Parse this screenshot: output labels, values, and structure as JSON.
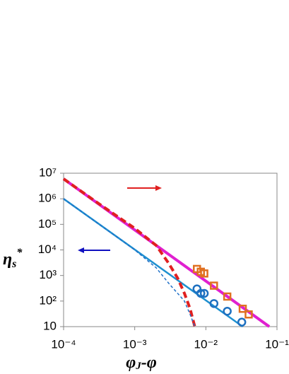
{
  "chart_data": {
    "type": "line",
    "x_label": {
      "main": "φ",
      "sub": "J",
      "rest": "-φ"
    },
    "y_label": {
      "main": "η",
      "sub": "s",
      "sup": "*"
    },
    "xlog": true,
    "ylog": true,
    "xlim": [
      0.0001,
      0.1
    ],
    "ylim": [
      10,
      10000000
    ],
    "xticks": [
      {
        "value": 0.0001,
        "label": "10⁻⁴"
      },
      {
        "value": 0.001,
        "label": "10⁻³"
      },
      {
        "value": 0.01,
        "label": "10⁻²"
      },
      {
        "value": 0.1,
        "label": "10⁻¹"
      }
    ],
    "yticks": [
      10,
      {
        "value": 100,
        "label": "10²"
      },
      {
        "value": 1000,
        "label": "10³"
      },
      {
        "value": 10000,
        "label": "10⁴"
      },
      {
        "value": 100000,
        "label": "10⁵"
      },
      {
        "value": 1000000,
        "label": "10⁶"
      },
      {
        "value": 10000000,
        "label": "10⁷"
      }
    ],
    "series": [
      {
        "color": "#e020d0",
        "style": "solid",
        "width": 4,
        "x": [
          0.0001,
          0.078
        ],
        "values": [
          6000000,
          10
        ]
      },
      {
        "color": "#1e90d0",
        "style": "solid",
        "width": 2.5,
        "x": [
          0.0001,
          0.033
        ],
        "values": [
          1000000,
          10
        ]
      },
      {
        "color": "#e02020",
        "style": "dashed",
        "width": 4,
        "x": [
          0.0001,
          0.0003,
          0.001,
          0.002,
          0.003,
          0.004,
          0.005,
          0.006,
          0.007
        ],
        "values": [
          6000000,
          700000,
          70000,
          15000,
          3000,
          800,
          200,
          50,
          10
        ]
      },
      {
        "color": "#2070c8",
        "style": "dashed-thin",
        "width": 1.5,
        "x": [
          0.0001,
          0.001,
          0.002,
          0.003,
          0.005,
          0.006,
          0.007
        ],
        "values": [
          1000000,
          10000,
          2000,
          500,
          100,
          30,
          10
        ]
      },
      {
        "color": "#e07020",
        "style": "square",
        "width": 2.5,
        "x": [
          0.0075,
          0.0085,
          0.0095,
          0.013,
          0.02,
          0.033,
          0.04
        ],
        "values": [
          1800,
          1400,
          1200,
          400,
          150,
          50,
          30
        ]
      },
      {
        "color": "#1e70c0",
        "style": "circle",
        "width": 2.5,
        "x": [
          0.0075,
          0.0085,
          0.0095,
          0.013,
          0.02,
          0.032
        ],
        "values": [
          300,
          200,
          200,
          80,
          40,
          15
        ]
      }
    ]
  }
}
